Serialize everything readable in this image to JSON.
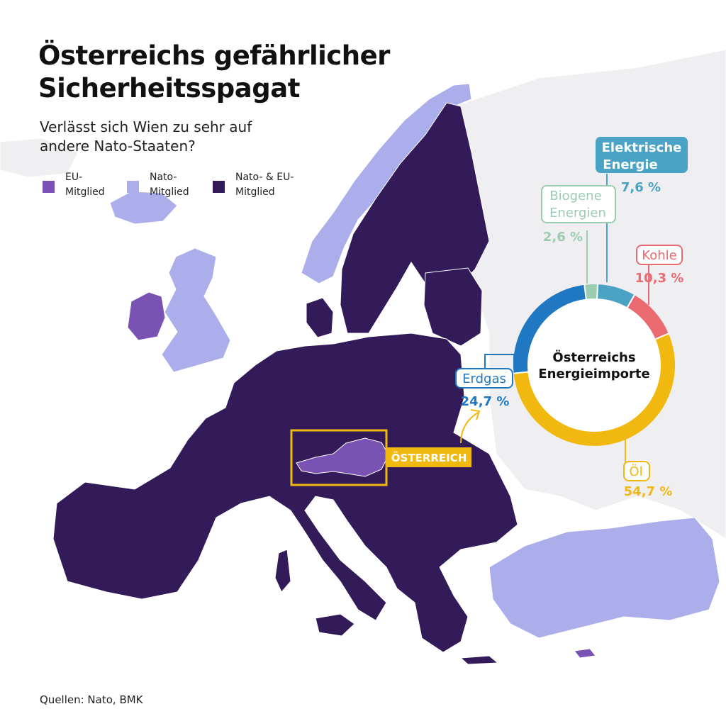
{
  "title_line1": "Österreichs gefährlicher",
  "title_line2": "Sicherheitsspagat",
  "subtitle_line1": "Verlässt sich Wien zu sehr auf",
  "subtitle_line2": "andere Nato-Staaten?",
  "legend": [
    {
      "line1": "EU-",
      "line2": "Mitglied",
      "color": "#7a52b3"
    },
    {
      "line1": "Nato-",
      "line2": "Mitglied",
      "color": "#abaeea"
    },
    {
      "line1": "Nato- & EU-",
      "line2": "Mitglied",
      "color": "#321b58"
    }
  ],
  "map": {
    "highlight_label": "ÖSTERREICH",
    "highlight_color": "#f1b90f",
    "colors": {
      "eu": "#7a52b3",
      "nato": "#abaeea",
      "nato_eu": "#321b58",
      "other": "#efeff2",
      "sea": "#ffffff"
    }
  },
  "chart_data": {
    "type": "pie",
    "title": "Österreichs Energieimporte",
    "series": [
      {
        "name": "Elektrische Energie",
        "value_label": "7,6 %",
        "value": 7.6,
        "color": "#4aa3c4"
      },
      {
        "name": "Kohle",
        "value_label": "10,3 %",
        "value": 10.3,
        "color": "#e96a70"
      },
      {
        "name": "Öl",
        "value_label": "54,7 %",
        "value": 54.7,
        "color": "#f1b90f"
      },
      {
        "name": "Erdgas",
        "value_label": "24,7 %",
        "value": 24.7,
        "color": "#1f78c1"
      },
      {
        "name": "Biogene Energien",
        "value_label": "2,6 %",
        "value": 2.6,
        "color": "#9cccb0"
      }
    ]
  },
  "donut_labels": {
    "center_line1": "Österreichs",
    "center_line2": "Energieimporte",
    "elektrisch_line1": "Elektrische",
    "elektrisch_line2": "Energie",
    "biogen_line1": "Biogene",
    "biogen_line2": "Energien",
    "kohle": "Kohle",
    "oel": "Öl",
    "erdgas": "Erdgas"
  },
  "source": "Quellen: Nato, BMK"
}
